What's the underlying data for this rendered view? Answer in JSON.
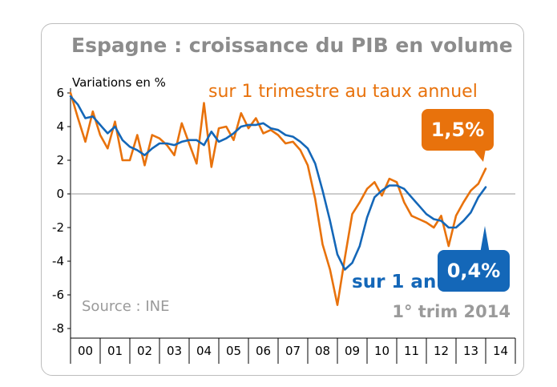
{
  "chart_data": {
    "type": "line",
    "title": "Espagne : croissance du PIB en volume",
    "ylabel": "Variations en %",
    "ylim": [
      -8,
      6
    ],
    "yticks": [
      6,
      4,
      2,
      0,
      -2,
      -4,
      -6,
      -8
    ],
    "xlim": [
      2000,
      2015
    ],
    "categories": [
      "00",
      "01",
      "02",
      "03",
      "04",
      "05",
      "06",
      "07",
      "08",
      "09",
      "10",
      "11",
      "12",
      "13",
      "14"
    ],
    "series": [
      {
        "name": "sur 1 trimestre au taux annuel",
        "color": "#e8720c",
        "x": [
          2000,
          2000.25,
          2000.5,
          2000.75,
          2001,
          2001.25,
          2001.5,
          2001.75,
          2002,
          2002.25,
          2002.5,
          2002.75,
          2003,
          2003.25,
          2003.5,
          2003.75,
          2004,
          2004.25,
          2004.5,
          2004.75,
          2005,
          2005.25,
          2005.5,
          2005.75,
          2006,
          2006.25,
          2006.5,
          2006.75,
          2007,
          2007.25,
          2007.5,
          2007.75,
          2008,
          2008.25,
          2008.5,
          2008.75,
          2009,
          2009.25,
          2009.5,
          2009.75,
          2010,
          2010.25,
          2010.5,
          2010.75,
          2011,
          2011.25,
          2011.5,
          2011.75,
          2012,
          2012.25,
          2012.5,
          2012.75,
          2013,
          2013.25,
          2013.5,
          2013.75,
          2014
        ],
        "values": [
          6.0,
          4.5,
          3.1,
          4.9,
          3.5,
          2.7,
          4.3,
          2.0,
          2.0,
          3.5,
          1.7,
          3.5,
          3.3,
          2.9,
          2.3,
          4.2,
          3.0,
          1.8,
          5.4,
          1.6,
          3.9,
          4.0,
          3.2,
          4.8,
          3.9,
          4.5,
          3.6,
          3.8,
          3.5,
          3.0,
          3.1,
          2.6,
          1.7,
          -0.3,
          -3.0,
          -4.5,
          -6.6,
          -3.8,
          -1.2,
          -0.5,
          0.3,
          0.7,
          -0.1,
          0.9,
          0.7,
          -0.5,
          -1.3,
          -1.5,
          -1.7,
          -2.0,
          -1.3,
          -3.1,
          -1.3,
          -0.5,
          0.2,
          0.6,
          1.5
        ]
      },
      {
        "name": "sur 1 an",
        "color": "#1467b8",
        "x": [
          2000,
          2000.25,
          2000.5,
          2000.75,
          2001,
          2001.25,
          2001.5,
          2001.75,
          2002,
          2002.25,
          2002.5,
          2002.75,
          2003,
          2003.25,
          2003.5,
          2003.75,
          2004,
          2004.25,
          2004.5,
          2004.75,
          2005,
          2005.25,
          2005.5,
          2005.75,
          2006,
          2006.25,
          2006.5,
          2006.75,
          2007,
          2007.25,
          2007.5,
          2007.75,
          2008,
          2008.25,
          2008.5,
          2008.75,
          2009,
          2009.25,
          2009.5,
          2009.75,
          2010,
          2010.25,
          2010.5,
          2010.75,
          2011,
          2011.25,
          2011.5,
          2011.75,
          2012,
          2012.25,
          2012.5,
          2012.75,
          2013,
          2013.25,
          2013.5,
          2013.75,
          2014
        ],
        "values": [
          5.8,
          5.3,
          4.5,
          4.6,
          4.1,
          3.6,
          4.0,
          3.2,
          2.8,
          2.6,
          2.3,
          2.7,
          3.0,
          3.0,
          2.9,
          3.1,
          3.2,
          3.2,
          2.9,
          3.7,
          3.1,
          3.3,
          3.6,
          4.0,
          4.1,
          4.1,
          4.2,
          3.9,
          3.8,
          3.5,
          3.4,
          3.1,
          2.7,
          1.8,
          0.2,
          -1.6,
          -3.6,
          -4.5,
          -4.1,
          -3.1,
          -1.4,
          -0.2,
          0.2,
          0.5,
          0.5,
          0.3,
          -0.2,
          -0.7,
          -1.2,
          -1.5,
          -1.6,
          -2.0,
          -2.0,
          -1.6,
          -1.1,
          -0.2,
          0.4
        ]
      }
    ]
  },
  "annotations": {
    "orange_label": "sur 1 trimestre au taux annuel",
    "blue_label": "sur 1 an",
    "orange_callout": "1,5%",
    "blue_callout": "0,4%",
    "source": "Source : INE",
    "period": "1° trim 2014"
  }
}
